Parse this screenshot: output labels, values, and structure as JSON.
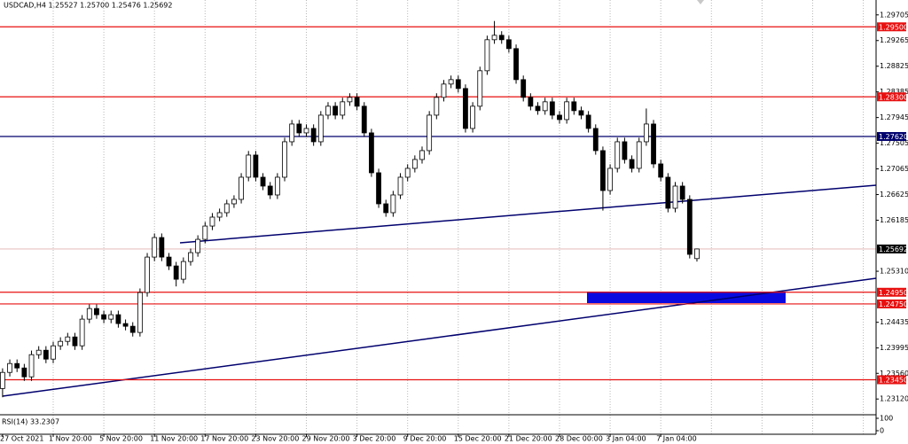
{
  "chart_data": {
    "type": "candlestick",
    "title": "USDCAD,H4  1.25527 1.25700 1.25476 1.25692",
    "categories": [
      "27 Oct 2021",
      null,
      null,
      null,
      null,
      null,
      null,
      "1 Nov 20:00",
      null,
      null,
      null,
      null,
      null,
      null,
      "5 Nov 20:00",
      null,
      null,
      null,
      null,
      null,
      null,
      "11 Nov 20:00",
      null,
      null,
      null,
      null,
      null,
      null,
      "17 Nov 20:00",
      null,
      null,
      null,
      null,
      null,
      null,
      "23 Nov 20:00",
      null,
      null,
      null,
      null,
      null,
      null,
      "29 Nov 20:00",
      null,
      null,
      null,
      null,
      null,
      null,
      "3 Dec 20:00",
      null,
      null,
      null,
      null,
      null,
      null,
      "9 Dec 20:00",
      null,
      null,
      null,
      null,
      null,
      null,
      "15 Dec 20:00",
      null,
      null,
      null,
      null,
      null,
      null,
      "21 Dec 20:00",
      null,
      null,
      null,
      null,
      null,
      null,
      "28 Dec 00:00",
      null,
      null,
      null,
      null,
      null,
      null,
      "3 Jan 04:00",
      null,
      null,
      null,
      null,
      null,
      null,
      "7 Jan 04:00",
      null,
      null,
      null,
      null,
      null
    ],
    "open": [
      1.233,
      1.23576,
      1.23728,
      1.23652,
      1.235,
      1.2388,
      1.23956,
      1.23804,
      1.24032,
      1.24108,
      1.24184,
      1.24032,
      1.24489,
      1.24671,
      1.24565,
      1.24489,
      1.24565,
      1.24413,
      1.24367,
      1.24261,
      1.24945,
      1.25553,
      1.25888,
      1.25553,
      1.25401,
      1.25173,
      1.25477,
      1.25629,
      1.25857,
      1.26085,
      1.26238,
      1.26314,
      1.26466,
      1.26542,
      1.26922,
      1.27302,
      1.26922,
      1.2677,
      1.26618,
      1.26922,
      1.2753,
      1.27834,
      1.27682,
      1.27758,
      1.2753,
      1.27986,
      1.28139,
      1.27986,
      1.28215,
      1.28291,
      1.28139,
      1.27682,
      1.26998,
      1.26466,
      1.26314,
      1.26618,
      1.26922,
      1.27074,
      1.27226,
      1.27378,
      1.27986,
      1.28291,
      1.28519,
      1.28595,
      1.28443,
      1.27758,
      1.28139,
      1.28747,
      1.29279,
      1.29355,
      1.29279,
      1.29127,
      1.28595,
      1.28291,
      1.28139,
      1.28063,
      1.28215,
      1.27986,
      1.2791,
      1.28215,
      1.28063,
      1.27986,
      1.27758,
      1.27378,
      1.26694,
      1.27074,
      1.2753,
      1.27226,
      1.27074,
      1.2753,
      1.27834,
      1.2715,
      1.26922,
      1.2639,
      1.2677,
      1.26542,
      1.25527
    ],
    "high": [
      1.23646,
      1.23798,
      1.23798,
      1.23722,
      1.2395,
      1.24026,
      1.24026,
      1.24102,
      1.24178,
      1.24254,
      1.24254,
      1.24559,
      1.24741,
      1.24741,
      1.24635,
      1.24635,
      1.24635,
      1.24483,
      1.24437,
      1.25015,
      1.25623,
      1.25958,
      1.25958,
      1.25623,
      1.25471,
      1.25547,
      1.25699,
      1.25927,
      1.26155,
      1.26308,
      1.26384,
      1.26536,
      1.26612,
      1.26992,
      1.27372,
      1.27372,
      1.26992,
      1.2684,
      1.26992,
      1.276,
      1.27904,
      1.27904,
      1.27828,
      1.27828,
      1.28056,
      1.28209,
      1.28209,
      1.28285,
      1.28361,
      1.28361,
      1.28209,
      1.27752,
      1.27068,
      1.26536,
      1.26688,
      1.26992,
      1.27144,
      1.27296,
      1.27448,
      1.28056,
      1.28361,
      1.28589,
      1.28665,
      1.28665,
      1.28513,
      1.28209,
      1.28817,
      1.29349,
      1.296,
      1.29425,
      1.29349,
      1.29197,
      1.28665,
      1.28361,
      1.28209,
      1.28285,
      1.28285,
      1.28056,
      1.28285,
      1.28285,
      1.28133,
      1.28056,
      1.27828,
      1.27448,
      1.27144,
      1.276,
      1.276,
      1.27296,
      1.276,
      1.281,
      1.27904,
      1.2722,
      1.26992,
      1.2684,
      1.2684,
      1.26612,
      1.257
    ],
    "low": [
      1.2315,
      1.23506,
      1.23582,
      1.2343,
      1.2343,
      1.2381,
      1.23734,
      1.23734,
      1.23962,
      1.24038,
      1.23962,
      1.23962,
      1.24419,
      1.24495,
      1.24419,
      1.24419,
      1.24343,
      1.24297,
      1.24191,
      1.24191,
      1.24875,
      1.25483,
      1.25483,
      1.25331,
      1.2505,
      1.25103,
      1.25407,
      1.25559,
      1.25787,
      1.26015,
      1.26168,
      1.26244,
      1.26396,
      1.26472,
      1.26852,
      1.26852,
      1.267,
      1.26548,
      1.26548,
      1.26852,
      1.2746,
      1.27612,
      1.27612,
      1.2746,
      1.2746,
      1.27916,
      1.27916,
      1.27916,
      1.28145,
      1.28069,
      1.27612,
      1.26928,
      1.26396,
      1.26244,
      1.26244,
      1.26548,
      1.26852,
      1.27004,
      1.27156,
      1.27308,
      1.27916,
      1.28221,
      1.28449,
      1.28373,
      1.27688,
      1.27688,
      1.28069,
      1.28677,
      1.29209,
      1.29209,
      1.29057,
      1.28525,
      1.28221,
      1.28069,
      1.27993,
      1.27993,
      1.27916,
      1.2784,
      1.2784,
      1.27993,
      1.27916,
      1.27688,
      1.27308,
      1.2635,
      1.26624,
      1.27004,
      1.27156,
      1.27004,
      1.27004,
      1.2746,
      1.2708,
      1.26852,
      1.2632,
      1.2632,
      1.26472,
      1.2553,
      1.25476
    ],
    "close": [
      1.23576,
      1.23728,
      1.23652,
      1.235,
      1.2388,
      1.23956,
      1.23804,
      1.24032,
      1.24108,
      1.24184,
      1.24032,
      1.24489,
      1.24671,
      1.24565,
      1.24489,
      1.24565,
      1.24413,
      1.24367,
      1.24261,
      1.24945,
      1.25553,
      1.25888,
      1.25553,
      1.25401,
      1.25173,
      1.25477,
      1.25629,
      1.25857,
      1.26085,
      1.26238,
      1.26314,
      1.26466,
      1.26542,
      1.26922,
      1.27302,
      1.26922,
      1.2677,
      1.26618,
      1.26922,
      1.2753,
      1.27834,
      1.27682,
      1.27758,
      1.2753,
      1.27986,
      1.28139,
      1.27986,
      1.28215,
      1.28291,
      1.28139,
      1.27682,
      1.26998,
      1.26466,
      1.26314,
      1.26618,
      1.26922,
      1.27074,
      1.27226,
      1.27378,
      1.27986,
      1.28291,
      1.28519,
      1.28595,
      1.28443,
      1.27758,
      1.28139,
      1.28747,
      1.29279,
      1.29355,
      1.29279,
      1.29127,
      1.28595,
      1.28291,
      1.28139,
      1.28063,
      1.28215,
      1.27986,
      1.2791,
      1.28215,
      1.28063,
      1.27986,
      1.27758,
      1.27378,
      1.26694,
      1.27074,
      1.2753,
      1.27226,
      1.27074,
      1.2753,
      1.27834,
      1.2715,
      1.26922,
      1.2639,
      1.2677,
      1.26542,
      1.256,
      1.25692
    ],
    "up_color": "#ffffff",
    "down_color": "#000000",
    "wick_color": "#000000",
    "ylim": [
      1.2285,
      1.2996
    ],
    "yticks": [
      1.29705,
      1.29265,
      1.28825,
      1.28385,
      1.27945,
      1.27505,
      1.27065,
      1.26625,
      1.26185,
      {
        "value": 1.2531,
        "label": "1.25310"
      },
      1.24435,
      1.23995,
      {
        "value": 1.2356,
        "label": "1.23560"
      },
      {
        "value": 1.2312,
        "label": "1.23120"
      }
    ],
    "levels": [
      {
        "value": 1.295,
        "label": "1.29500",
        "color": "#e81010",
        "label_color": "#e81010"
      },
      {
        "value": 1.283,
        "label": "1.28300",
        "color": "#e81010",
        "label_color": "#e81010"
      },
      {
        "value": 1.2762,
        "label": "1.27620",
        "color": "#00006e",
        "label_color": "#00006e"
      },
      {
        "value": 1.25692,
        "label": "1.25692",
        "color": "#e8c0c0",
        "label_color": "#000000"
      },
      {
        "value": 1.2495,
        "label": "1.24950",
        "color": "#e81010",
        "label_color": "#e81010"
      },
      {
        "value": 1.2475,
        "label": "1.24750",
        "color": "#e81010",
        "label_color": "#e81010"
      },
      {
        "value": 1.2345,
        "label": "1.23450",
        "color": "#e81010",
        "label_color": "#e81010"
      }
    ],
    "indicator": {
      "label": "RSI(14) 33.2307",
      "ylim": [
        0,
        100
      ],
      "yticks": [
        100,
        0
      ]
    }
  }
}
